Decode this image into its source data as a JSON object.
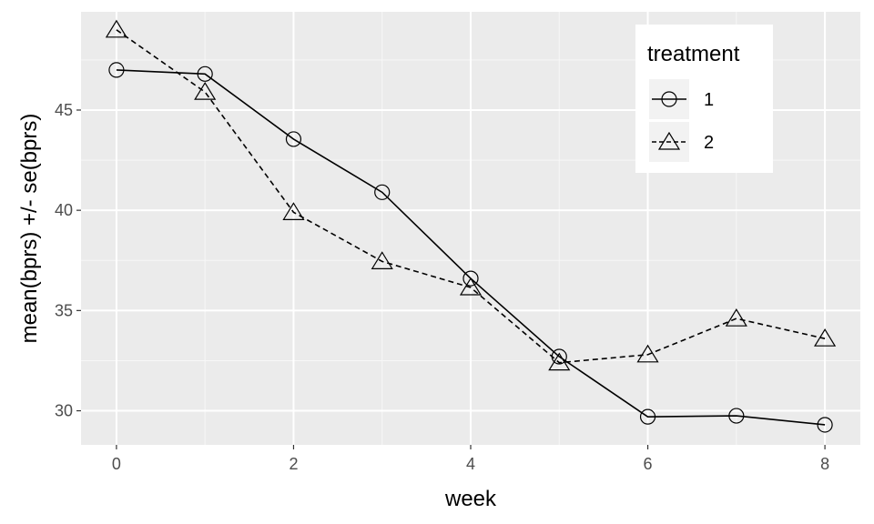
{
  "chart_data": {
    "type": "line",
    "xlabel": "week",
    "ylabel": "mean(bprs) +/- se(bprs)",
    "xlim": [
      -0.4,
      8.4
    ],
    "ylim": [
      28.3,
      49.9
    ],
    "x_ticks": [
      0,
      2,
      4,
      6,
      8
    ],
    "y_ticks": [
      30,
      35,
      40,
      45
    ],
    "grid": true,
    "legend": {
      "title": "treatment",
      "position": "top-right"
    },
    "series": [
      {
        "name": "1",
        "marker": "circle",
        "linestyle": "solid",
        "x": [
          0,
          1,
          2,
          3,
          4,
          5,
          6,
          7,
          8
        ],
        "values": [
          47.0,
          46.8,
          43.55,
          40.9,
          36.6,
          32.7,
          29.7,
          29.75,
          29.3
        ]
      },
      {
        "name": "2",
        "marker": "triangle",
        "linestyle": "dashed",
        "x": [
          0,
          1,
          2,
          3,
          4,
          5,
          6,
          7,
          8
        ],
        "values": [
          49.0,
          45.9,
          39.9,
          37.45,
          36.15,
          32.4,
          32.8,
          34.6,
          33.6
        ]
      }
    ]
  },
  "colors": {
    "panel_background": "#ebebeb",
    "grid_major": "#ffffff",
    "grid_minor": "#f7f7f7",
    "line": "#000000",
    "tick_text": "#4d4d4d"
  }
}
